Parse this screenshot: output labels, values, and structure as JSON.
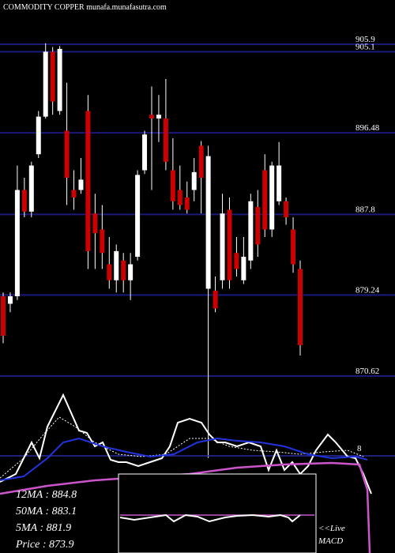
{
  "chart_data": {
    "type": "candlestick",
    "title": "COMMODITY COPPER munafa.munafasutra.com",
    "up_color": "#ffffff",
    "down_color": "#cc0000",
    "grid_color": "#1a1a7a",
    "ylim": [
      851.8,
      910.6
    ],
    "yticks": [
      905.9,
      905.1,
      896.48,
      887.8,
      879.24,
      870.62
    ],
    "open": [
      879.1,
      878.3,
      879.1,
      890.4,
      888.1,
      894.2,
      898.2,
      905.1,
      898.8,
      896.7,
      890.4,
      890.4,
      898.8,
      887.9,
      886.2,
      882.5,
      880.8,
      882.9,
      880.8,
      883.3,
      892.5,
      898.4,
      898.0,
      898.0,
      892.5,
      890.4,
      889.6,
      890.4,
      895.1,
      879.9,
      879.7,
      880.8,
      888.3,
      883.7,
      880.8,
      882.9,
      888.6,
      892.5,
      886.2,
      889.2,
      889.2,
      886.2,
      882.0
    ],
    "high": [
      879.5,
      879.5,
      893.0,
      891.7,
      893.4,
      898.8,
      906.0,
      905.6,
      905.7,
      901.8,
      892.5,
      893.8,
      900.5,
      890.0,
      888.8,
      885.4,
      884.6,
      883.7,
      883.7,
      892.5,
      896.7,
      901.4,
      900.5,
      902.2,
      895.9,
      893.0,
      891.3,
      893.8,
      895.6,
      895.1,
      881.2,
      890.0,
      889.6,
      885.4,
      885.4,
      890.0,
      890.4,
      894.2,
      893.4,
      895.5,
      889.6,
      887.5,
      882.9
    ],
    "low": [
      874.1,
      877.4,
      878.7,
      887.5,
      887.5,
      893.8,
      898.0,
      898.4,
      898.4,
      888.8,
      888.3,
      890.0,
      882.0,
      882.0,
      882.0,
      879.9,
      879.5,
      879.5,
      878.7,
      882.9,
      892.1,
      890.4,
      895.5,
      892.5,
      888.3,
      888.3,
      887.9,
      889.2,
      887.9,
      861.9,
      877.4,
      879.9,
      879.9,
      881.2,
      880.4,
      882.0,
      883.3,
      885.4,
      885.4,
      888.8,
      886.7,
      881.6,
      872.8
    ],
    "close": [
      874.9,
      879.1,
      890.4,
      888.1,
      893.0,
      898.2,
      905.1,
      899.8,
      905.4,
      891.7,
      889.6,
      891.5,
      883.9,
      885.8,
      883.7,
      880.8,
      883.9,
      880.8,
      882.5,
      892.0,
      896.3,
      898.0,
      898.4,
      893.4,
      889.2,
      888.8,
      888.3,
      892.3,
      891.7,
      894.0,
      877.8,
      887.9,
      880.8,
      882.0,
      883.3,
      889.2,
      884.6,
      886.2,
      893.0,
      893.0,
      887.5,
      882.5,
      873.9
    ],
    "legend": [
      "12MA : 884.8",
      "50MA : 883.1",
      "5MA : 881.9",
      "Price   : 873.9"
    ],
    "macd_labels": [
      "<<Live",
      "MACD"
    ],
    "indicator_label": "8"
  }
}
